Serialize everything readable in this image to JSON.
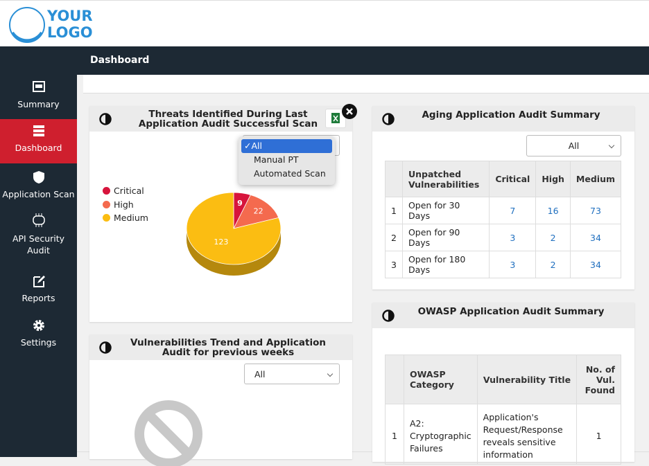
{
  "logo": {
    "line1": "YOUR",
    "line2": "LOGO"
  },
  "topbar": {
    "title": "Dashboard"
  },
  "sidebar": {
    "items": [
      {
        "label": "Summary"
      },
      {
        "label": "Dashboard",
        "active": true
      },
      {
        "label": "Application Scan"
      },
      {
        "label": "API Security Audit"
      },
      {
        "label": "Reports"
      },
      {
        "label": "Settings"
      }
    ]
  },
  "threats_panel": {
    "title": "Threats Identified During Last Application Audit Successful Scan",
    "dropdown": {
      "options": [
        "All",
        "Manual PT",
        "Automated Scan"
      ],
      "selected": 0
    }
  },
  "chart_data": {
    "type": "pie",
    "categories": [
      "Critical",
      "High",
      "Medium"
    ],
    "values": [
      9,
      22,
      123
    ],
    "colors": [
      "#d7143c",
      "#f46a4e",
      "#fbbd12"
    ],
    "legend": "left"
  },
  "trend_panel": {
    "title": "Vulnerabilities Trend and Application Audit for previous weeks",
    "select": "All"
  },
  "aging_panel": {
    "title": "Aging Application Audit Summary",
    "select": "All",
    "table": {
      "columns": [
        "Unpatched Vulnerabilities",
        "Critical",
        "High",
        "Medium"
      ],
      "rows": [
        [
          1,
          "Open for 30 Days",
          7,
          16,
          73
        ],
        [
          2,
          "Open for 90 Days",
          3,
          2,
          34
        ],
        [
          3,
          "Open for 180 Days",
          3,
          2,
          34
        ]
      ]
    }
  },
  "owasp_panel": {
    "title": "OWASP Application Audit Summary",
    "table": {
      "columns": [
        "OWASP Category",
        "Vulnerability Title",
        "No. of Vul. Found"
      ],
      "rows": [
        [
          1,
          "A2: Cryptographic Failures",
          "Application's Request/Response reveals sensitive information",
          1
        ]
      ]
    }
  }
}
